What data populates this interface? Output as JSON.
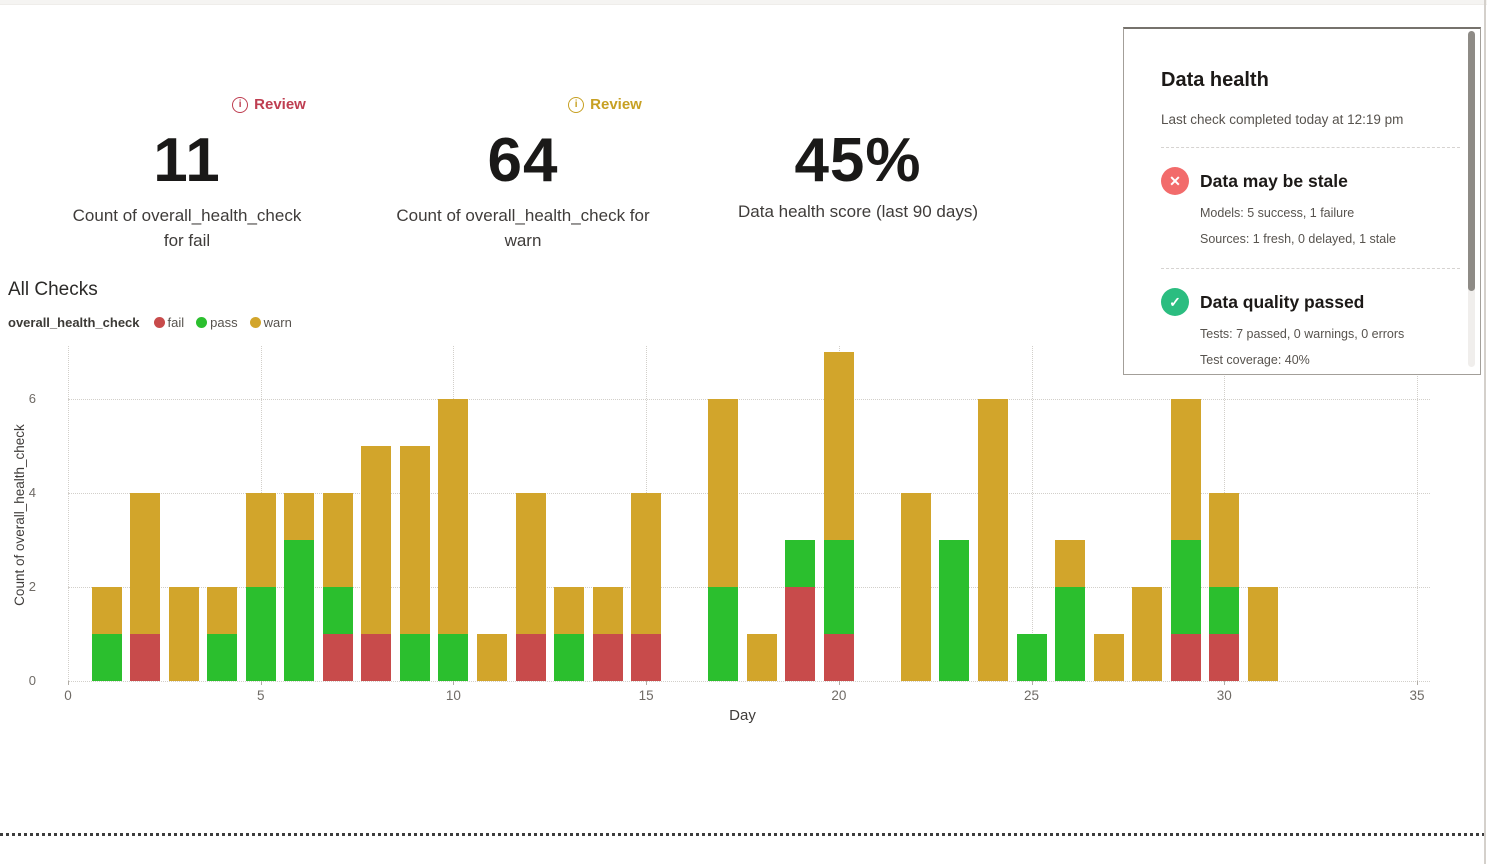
{
  "page": {
    "section_title": "All Checks"
  },
  "metrics": [
    {
      "badge": "Review",
      "badge_color": "#bf3e51",
      "value": "11",
      "label": "Count of overall_health_check for fail"
    },
    {
      "badge": "Review",
      "badge_color": "#c7a023",
      "value": "64",
      "label": "Count of overall_health_check for warn"
    },
    {
      "badge": null,
      "value": "45%",
      "label": "Data health score (last 90 days)"
    }
  ],
  "legend": {
    "series_name": "overall_health_check",
    "items": [
      {
        "label": "fail",
        "color": "#c84b4b"
      },
      {
        "label": "pass",
        "color": "#2bbf2e"
      },
      {
        "label": "warn",
        "color": "#d2a52b"
      }
    ]
  },
  "chart_data": {
    "type": "bar",
    "stacked": true,
    "title": "All Checks",
    "xlabel": "Day",
    "ylabel": "Count of overall_health_check",
    "x_ticks": [
      0,
      5,
      10,
      15,
      20,
      25,
      30,
      35
    ],
    "y_ticks": [
      0,
      2,
      4,
      6
    ],
    "xlim": [
      0,
      35
    ],
    "ylim": [
      0,
      7.2
    ],
    "grid": "dotted",
    "legend_position": "top-left",
    "series": [
      {
        "name": "fail",
        "color": "#c84b4b"
      },
      {
        "name": "pass",
        "color": "#2bbf2e"
      },
      {
        "name": "warn",
        "color": "#d2a52b"
      }
    ],
    "bars": [
      {
        "day": 1,
        "fail": 0,
        "pass": 1,
        "warn": 1
      },
      {
        "day": 2,
        "fail": 1,
        "pass": 0,
        "warn": 3
      },
      {
        "day": 3,
        "fail": 0,
        "pass": 0,
        "warn": 2
      },
      {
        "day": 4,
        "fail": 0,
        "pass": 1,
        "warn": 1
      },
      {
        "day": 5,
        "fail": 0,
        "pass": 2,
        "warn": 2
      },
      {
        "day": 6,
        "fail": 0,
        "pass": 3,
        "warn": 1
      },
      {
        "day": 7,
        "fail": 1,
        "pass": 1,
        "warn": 2
      },
      {
        "day": 8,
        "fail": 1,
        "pass": 0,
        "warn": 4
      },
      {
        "day": 9,
        "fail": 0,
        "pass": 1,
        "warn": 4
      },
      {
        "day": 10,
        "fail": 0,
        "pass": 1,
        "warn": 5
      },
      {
        "day": 11,
        "fail": 0,
        "pass": 0,
        "warn": 1
      },
      {
        "day": 12,
        "fail": 1,
        "pass": 0,
        "warn": 3
      },
      {
        "day": 13,
        "fail": 0,
        "pass": 1,
        "warn": 1
      },
      {
        "day": 14,
        "fail": 1,
        "pass": 0,
        "warn": 1
      },
      {
        "day": 15,
        "fail": 1,
        "pass": 0,
        "warn": 3
      },
      {
        "day": 17,
        "fail": 0,
        "pass": 2,
        "warn": 4
      },
      {
        "day": 18,
        "fail": 0,
        "pass": 0,
        "warn": 1
      },
      {
        "day": 19,
        "fail": 2,
        "pass": 1,
        "warn": 0
      },
      {
        "day": 20,
        "fail": 1,
        "pass": 2,
        "warn": 4
      },
      {
        "day": 22,
        "fail": 0,
        "pass": 0,
        "warn": 4
      },
      {
        "day": 23,
        "fail": 0,
        "pass": 3,
        "warn": 0
      },
      {
        "day": 24,
        "fail": 0,
        "pass": 0,
        "warn": 6
      },
      {
        "day": 25,
        "fail": 0,
        "pass": 1,
        "warn": 0
      },
      {
        "day": 26,
        "fail": 0,
        "pass": 2,
        "warn": 1
      },
      {
        "day": 27,
        "fail": 0,
        "pass": 0,
        "warn": 1
      },
      {
        "day": 28,
        "fail": 0,
        "pass": 0,
        "warn": 2
      },
      {
        "day": 29,
        "fail": 1,
        "pass": 2,
        "warn": 3
      },
      {
        "day": 30,
        "fail": 1,
        "pass": 1,
        "warn": 2
      },
      {
        "day": 31,
        "fail": 0,
        "pass": 0,
        "warn": 2
      }
    ]
  },
  "panel": {
    "title": "Data health",
    "subtitle": "Last check completed today at 12:19 pm",
    "items": [
      {
        "icon": "x-circle-icon",
        "icon_color": "#f26b6b",
        "title": "Data may be stale",
        "lines": [
          "Models: 5 success, 1 failure",
          "Sources: 1 fresh, 0 delayed, 1 stale"
        ]
      },
      {
        "icon": "check-circle-icon",
        "icon_color": "#2bbd80",
        "title": "Data quality passed",
        "lines": [
          "Tests: 7 passed, 0 warnings, 0 errors",
          "Test coverage: 40%"
        ]
      }
    ]
  }
}
